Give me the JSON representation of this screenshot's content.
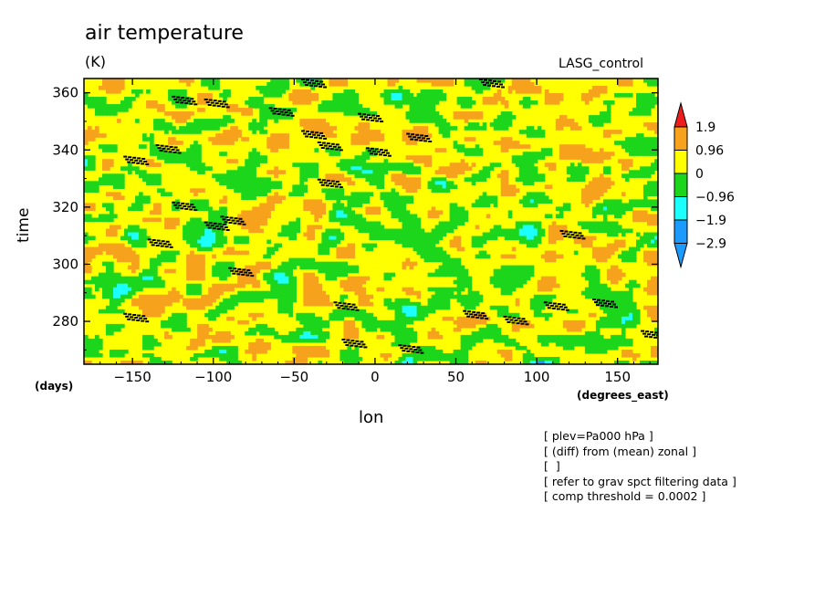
{
  "header": {
    "title": "air temperature",
    "units": "(K)",
    "model": "LASG_control"
  },
  "notes": [
    "[ plev=Pa000 hPa ]",
    "[ (diff) from (mean) zonal ]",
    "[  ]",
    "[ refer to grav spct filtering data ]",
    "[ comp threshold = 0.0002 ]"
  ],
  "colors": {
    "red": "#ee1c1c",
    "orange": "#f7a21c",
    "yellow": "#ffff00",
    "green": "#1cd61c",
    "cyan": "#1cffff",
    "blue": "#1c9bff",
    "stipple": "#000000"
  },
  "chart_data": {
    "type": "heatmap",
    "title": "air temperature",
    "subtitle": "(K)",
    "xlabel": "lon",
    "ylabel": "time",
    "x_unit_left": "(days)",
    "x_unit_right": "(degrees_east)",
    "xlim": [
      -180,
      175
    ],
    "ylim": [
      265,
      365
    ],
    "xticks": [
      -150,
      -100,
      -50,
      0,
      50,
      100,
      150
    ],
    "yticks": [
      280,
      300,
      320,
      340,
      360
    ],
    "legend_position": "right",
    "colorbar": {
      "labels": [
        "1.9",
        "0.96",
        "0",
        "-0.96",
        "-1.9",
        "-2.9"
      ],
      "levels": [
        1.9,
        0.96,
        0,
        -0.96,
        -1.9,
        -2.9
      ]
    },
    "stipple_regions": [
      {
        "lon": -150,
        "time": 337
      },
      {
        "lon": -130,
        "time": 341
      },
      {
        "lon": -120,
        "time": 358
      },
      {
        "lon": -100,
        "time": 357
      },
      {
        "lon": -60,
        "time": 354
      },
      {
        "lon": -40,
        "time": 346
      },
      {
        "lon": -30,
        "time": 342
      },
      {
        "lon": -5,
        "time": 352
      },
      {
        "lon": 0,
        "time": 340
      },
      {
        "lon": -120,
        "time": 321
      },
      {
        "lon": -100,
        "time": 314
      },
      {
        "lon": -90,
        "time": 316
      },
      {
        "lon": -30,
        "time": 329
      },
      {
        "lon": -135,
        "time": 308
      },
      {
        "lon": -85,
        "time": 298
      },
      {
        "lon": -150,
        "time": 282
      },
      {
        "lon": -20,
        "time": 286
      },
      {
        "lon": 60,
        "time": 283
      },
      {
        "lon": 85,
        "time": 281
      },
      {
        "lon": 140,
        "time": 287
      },
      {
        "lon": 20,
        "time": 271
      },
      {
        "lon": -15,
        "time": 273
      },
      {
        "lon": 120,
        "time": 311
      },
      {
        "lon": 110,
        "time": 286
      },
      {
        "lon": 25,
        "time": 345
      },
      {
        "lon": 70,
        "time": 364
      },
      {
        "lon": -40,
        "time": 364
      },
      {
        "lon": 170,
        "time": 276
      }
    ]
  }
}
